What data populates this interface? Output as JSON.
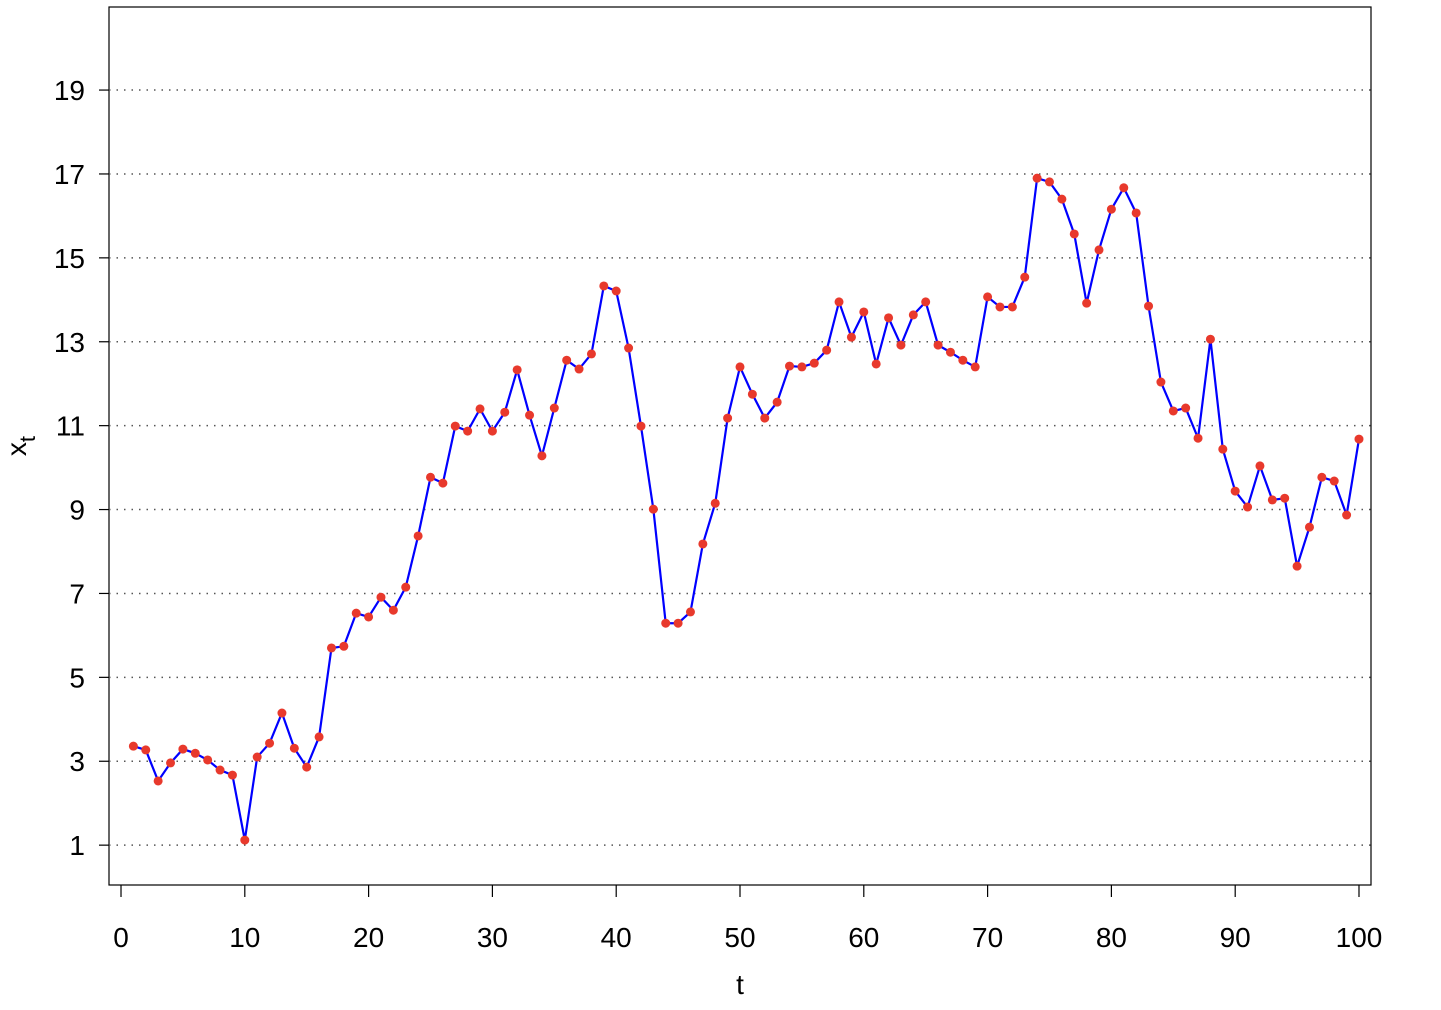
{
  "chart_data": {
    "type": "line",
    "xlabel": "t",
    "ylabel": "x",
    "ylabel_subscript": "t",
    "x": [
      1,
      2,
      3,
      4,
      5,
      6,
      7,
      8,
      9,
      10,
      11,
      12,
      13,
      14,
      15,
      16,
      17,
      18,
      19,
      20,
      21,
      22,
      23,
      24,
      25,
      26,
      27,
      28,
      29,
      30,
      31,
      32,
      33,
      34,
      35,
      36,
      37,
      38,
      39,
      40,
      41,
      42,
      43,
      44,
      45,
      46,
      47,
      48,
      49,
      50,
      51,
      52,
      53,
      54,
      55,
      56,
      57,
      58,
      59,
      60,
      61,
      62,
      63,
      64,
      65,
      66,
      67,
      68,
      69,
      70,
      71,
      72,
      73,
      74,
      75,
      76,
      77,
      78,
      79,
      80,
      81,
      82,
      83,
      84,
      85,
      86,
      87,
      88,
      89,
      90,
      91,
      92,
      93,
      94,
      95,
      96,
      97,
      98,
      99,
      100
    ],
    "series": [
      {
        "line_color": "#0000ff",
        "marker_color": "#e8392c",
        "values": [
          3.36,
          3.27,
          2.53,
          2.96,
          3.29,
          3.19,
          3.03,
          2.79,
          2.67,
          1.12,
          3.1,
          3.43,
          4.15,
          3.31,
          2.86,
          3.58,
          5.7,
          5.74,
          6.53,
          6.44,
          6.91,
          6.6,
          7.15,
          8.37,
          9.77,
          9.63,
          10.99,
          10.87,
          11.4,
          10.87,
          11.32,
          12.33,
          11.25,
          10.28,
          11.42,
          12.56,
          12.35,
          12.71,
          14.33,
          14.21,
          12.85,
          10.99,
          9.01,
          6.29,
          6.29,
          6.56,
          8.18,
          9.15,
          11.18,
          12.4,
          11.75,
          11.18,
          11.56,
          12.42,
          12.4,
          12.49,
          12.8,
          13.95,
          13.11,
          13.71,
          12.47,
          13.57,
          12.92,
          13.64,
          13.95,
          12.92,
          12.75,
          12.56,
          12.4,
          14.07,
          13.83,
          13.83,
          14.54,
          16.9,
          16.81,
          16.4,
          15.57,
          13.92,
          15.19,
          16.16,
          16.67,
          16.07,
          13.85,
          12.04,
          11.35,
          11.42,
          10.7,
          13.06,
          10.44,
          9.44,
          9.06,
          10.04,
          9.23,
          9.27,
          7.65,
          8.58,
          9.77,
          9.68,
          8.87,
          10.68
        ]
      }
    ],
    "xlim": [
      -0.97,
      100.97
    ],
    "ylim": [
      0.05,
      20.98
    ],
    "xticks": [
      0,
      10,
      20,
      30,
      40,
      50,
      60,
      70,
      80,
      90,
      100
    ],
    "yticks": [
      1,
      3,
      5,
      7,
      9,
      11,
      13,
      15,
      17,
      19
    ],
    "grid": "y-dotted"
  }
}
